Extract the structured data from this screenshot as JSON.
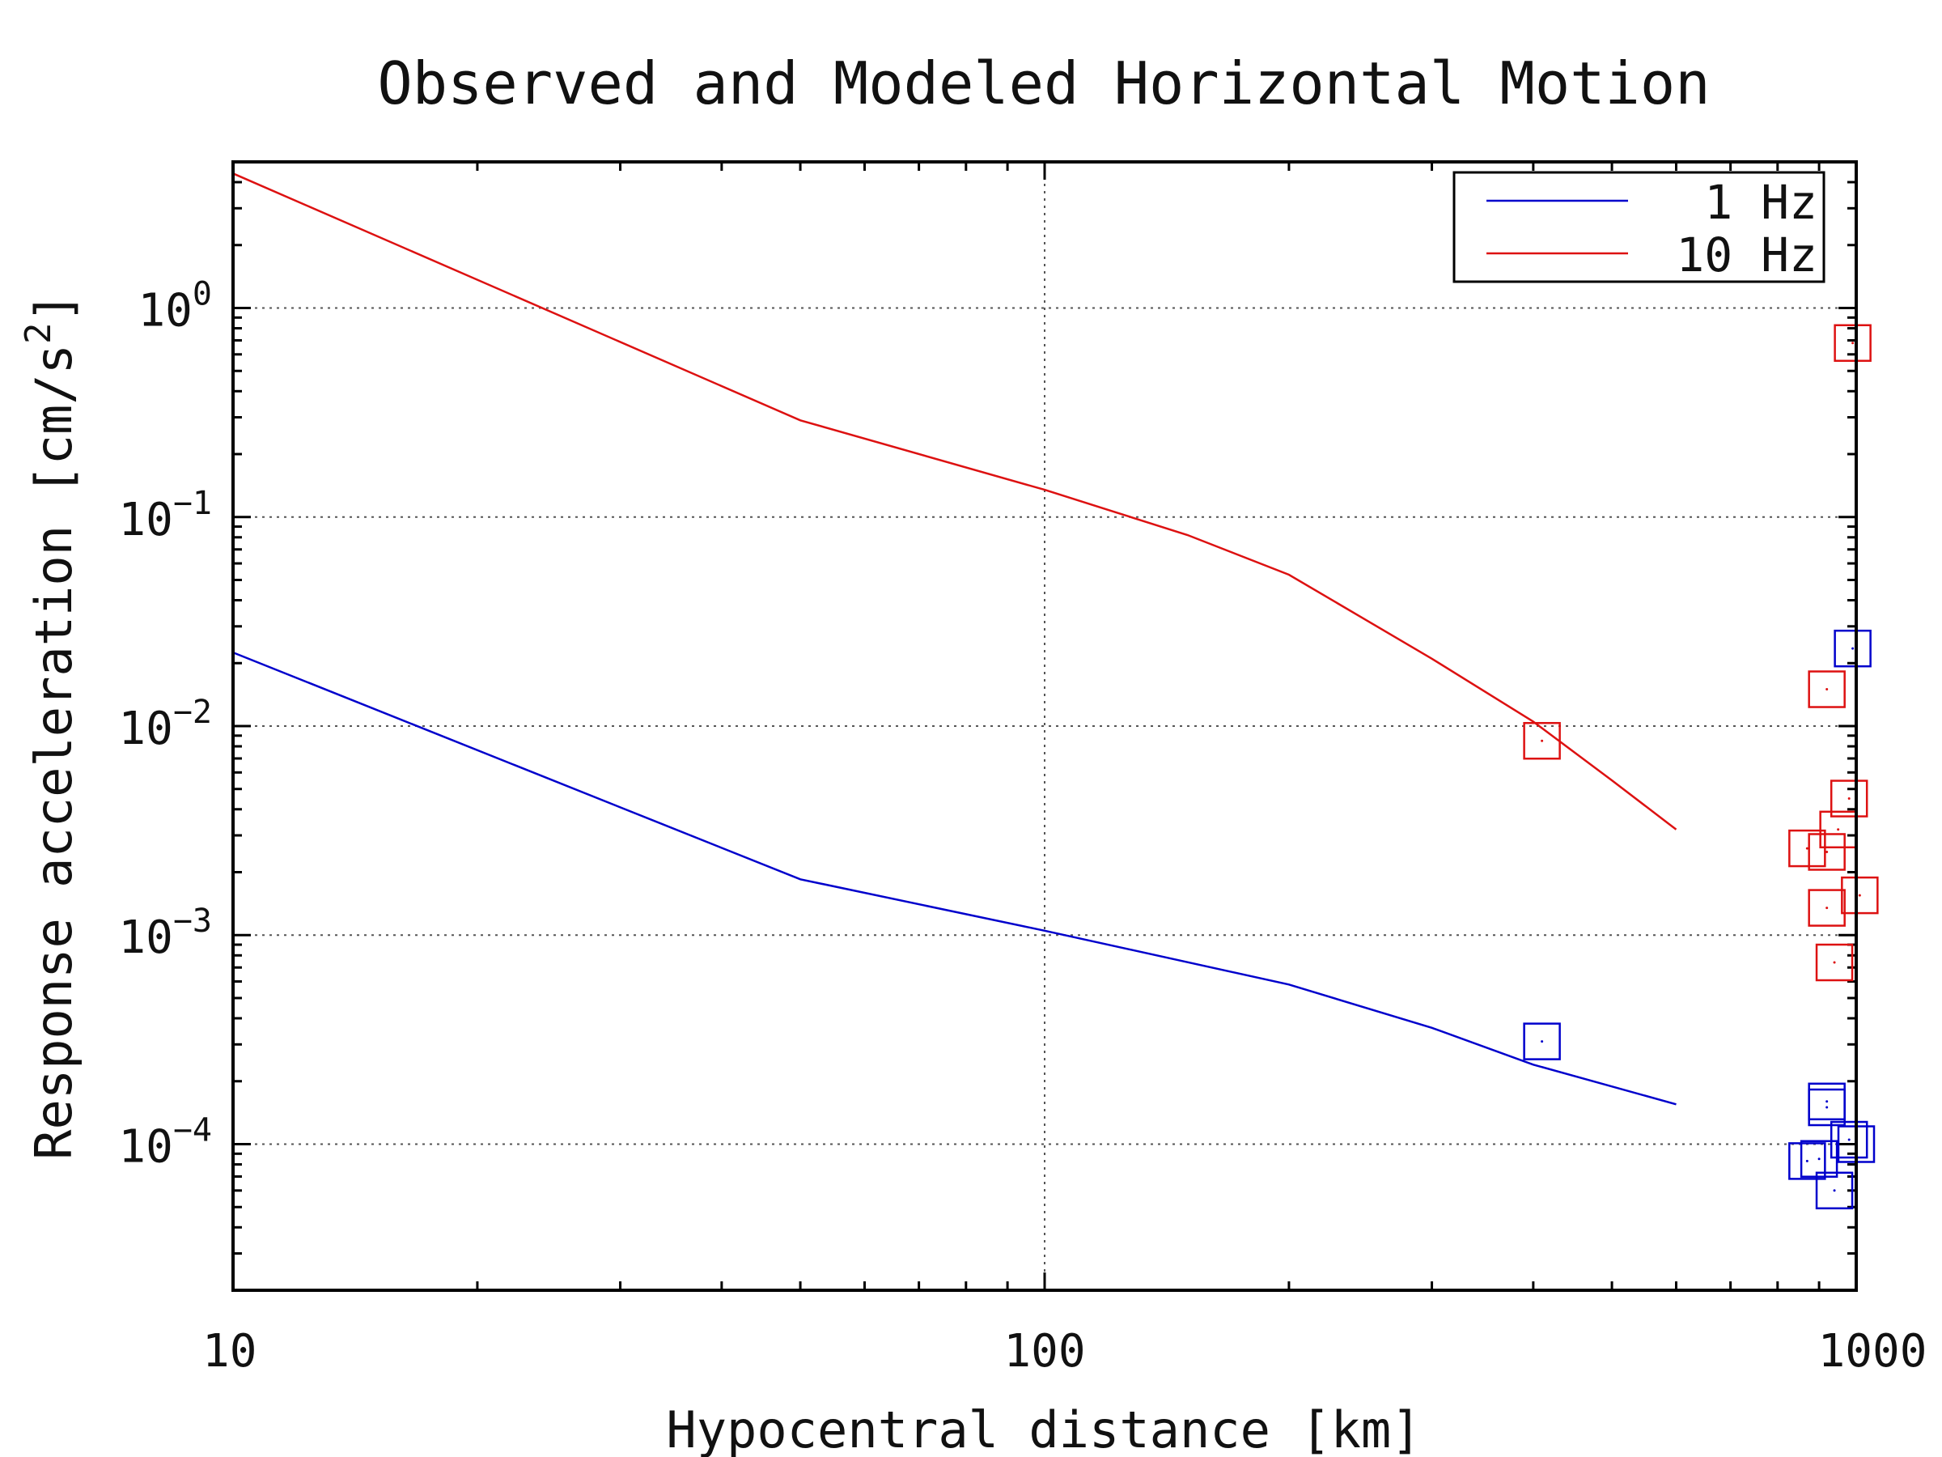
{
  "chart_data": {
    "type": "line",
    "title": "Observed and Modeled Horizontal Motion",
    "xlabel": "Hypocentral distance [km]",
    "ylabel": "Response acceleration [cm/s²]",
    "ylabel_parts": {
      "main": "Response acceleration [cm/s",
      "exponent": "2",
      "close": "]"
    },
    "x_scale": "log",
    "y_scale": "log",
    "xlim": [
      10,
      1000
    ],
    "ylim": [
      2e-05,
      5
    ],
    "x_ticks": [
      {
        "value": 10,
        "label": "10"
      },
      {
        "value": 100,
        "label": "100"
      },
      {
        "value": 1000,
        "label": "1000"
      }
    ],
    "y_ticks": [
      {
        "value": 1,
        "base": "10",
        "exp": "0"
      },
      {
        "value": 0.1,
        "base": "10",
        "exp": "−1"
      },
      {
        "value": 0.01,
        "base": "10",
        "exp": "−2"
      },
      {
        "value": 0.001,
        "base": "10",
        "exp": "−3"
      },
      {
        "value": 0.0001,
        "base": "10",
        "exp": "−4"
      }
    ],
    "grid": true,
    "legend_position": "top-right",
    "series": [
      {
        "name": "1 Hz",
        "color": "#0000cc",
        "kind": "model-line",
        "points": [
          [
            10,
            0.0225
          ],
          [
            50,
            0.00185
          ],
          [
            100,
            0.00105
          ],
          [
            200,
            0.00058
          ],
          [
            300,
            0.00036
          ],
          [
            400,
            0.00024
          ],
          [
            600,
            0.000155
          ]
        ]
      },
      {
        "name": "10 Hz",
        "color": "#dd1111",
        "kind": "model-line",
        "points": [
          [
            10,
            4.4
          ],
          [
            50,
            0.29
          ],
          [
            100,
            0.135
          ],
          [
            150,
            0.082
          ],
          [
            200,
            0.053
          ],
          [
            300,
            0.021
          ],
          [
            400,
            0.0105
          ],
          [
            500,
            0.0055
          ],
          [
            600,
            0.0032
          ]
        ]
      }
    ],
    "observations": [
      {
        "color": "#0000cc",
        "marker": "square",
        "points": [
          [
            410,
            0.00031
          ],
          [
            920,
            0.00016
          ],
          [
            920,
            0.00015
          ],
          [
            870,
            8.3e-05
          ],
          [
            900,
            8.5e-05
          ],
          [
            940,
            6e-05
          ],
          [
            980,
            0.000105
          ],
          [
            1000,
            0.0001
          ],
          [
            990,
            0.0235
          ]
        ]
      },
      {
        "color": "#dd1111",
        "marker": "square",
        "points": [
          [
            410,
            0.0085
          ],
          [
            920,
            0.015
          ],
          [
            990,
            0.68
          ],
          [
            980,
            0.0045
          ],
          [
            950,
            0.0032
          ],
          [
            870,
            0.0026
          ],
          [
            920,
            0.0025
          ],
          [
            920,
            0.00135
          ],
          [
            1010,
            0.00155
          ],
          [
            940,
            0.00074
          ]
        ]
      }
    ]
  }
}
